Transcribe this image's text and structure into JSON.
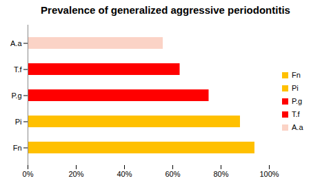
{
  "chart_data": {
    "type": "bar",
    "title": "Prevalence of generalized aggressive periodontitis",
    "orientation": "horizontal",
    "categories": [
      "A.a",
      "T.f",
      "P.g",
      "Pi",
      "Fn"
    ],
    "values": [
      56,
      63,
      75,
      88,
      94
    ],
    "colors": [
      "#fbd3c6",
      "#ff0000",
      "#ff0000",
      "#ffc000",
      "#ffc000"
    ],
    "xlim": [
      0,
      100
    ],
    "xticks": [
      {
        "value": 0,
        "label": "0%"
      },
      {
        "value": 20,
        "label": "20%"
      },
      {
        "value": 40,
        "label": "40%"
      },
      {
        "value": 60,
        "label": "60%"
      },
      {
        "value": 80,
        "label": "80%"
      },
      {
        "value": 100,
        "label": "100%"
      }
    ],
    "grid": false,
    "legend": "right"
  }
}
